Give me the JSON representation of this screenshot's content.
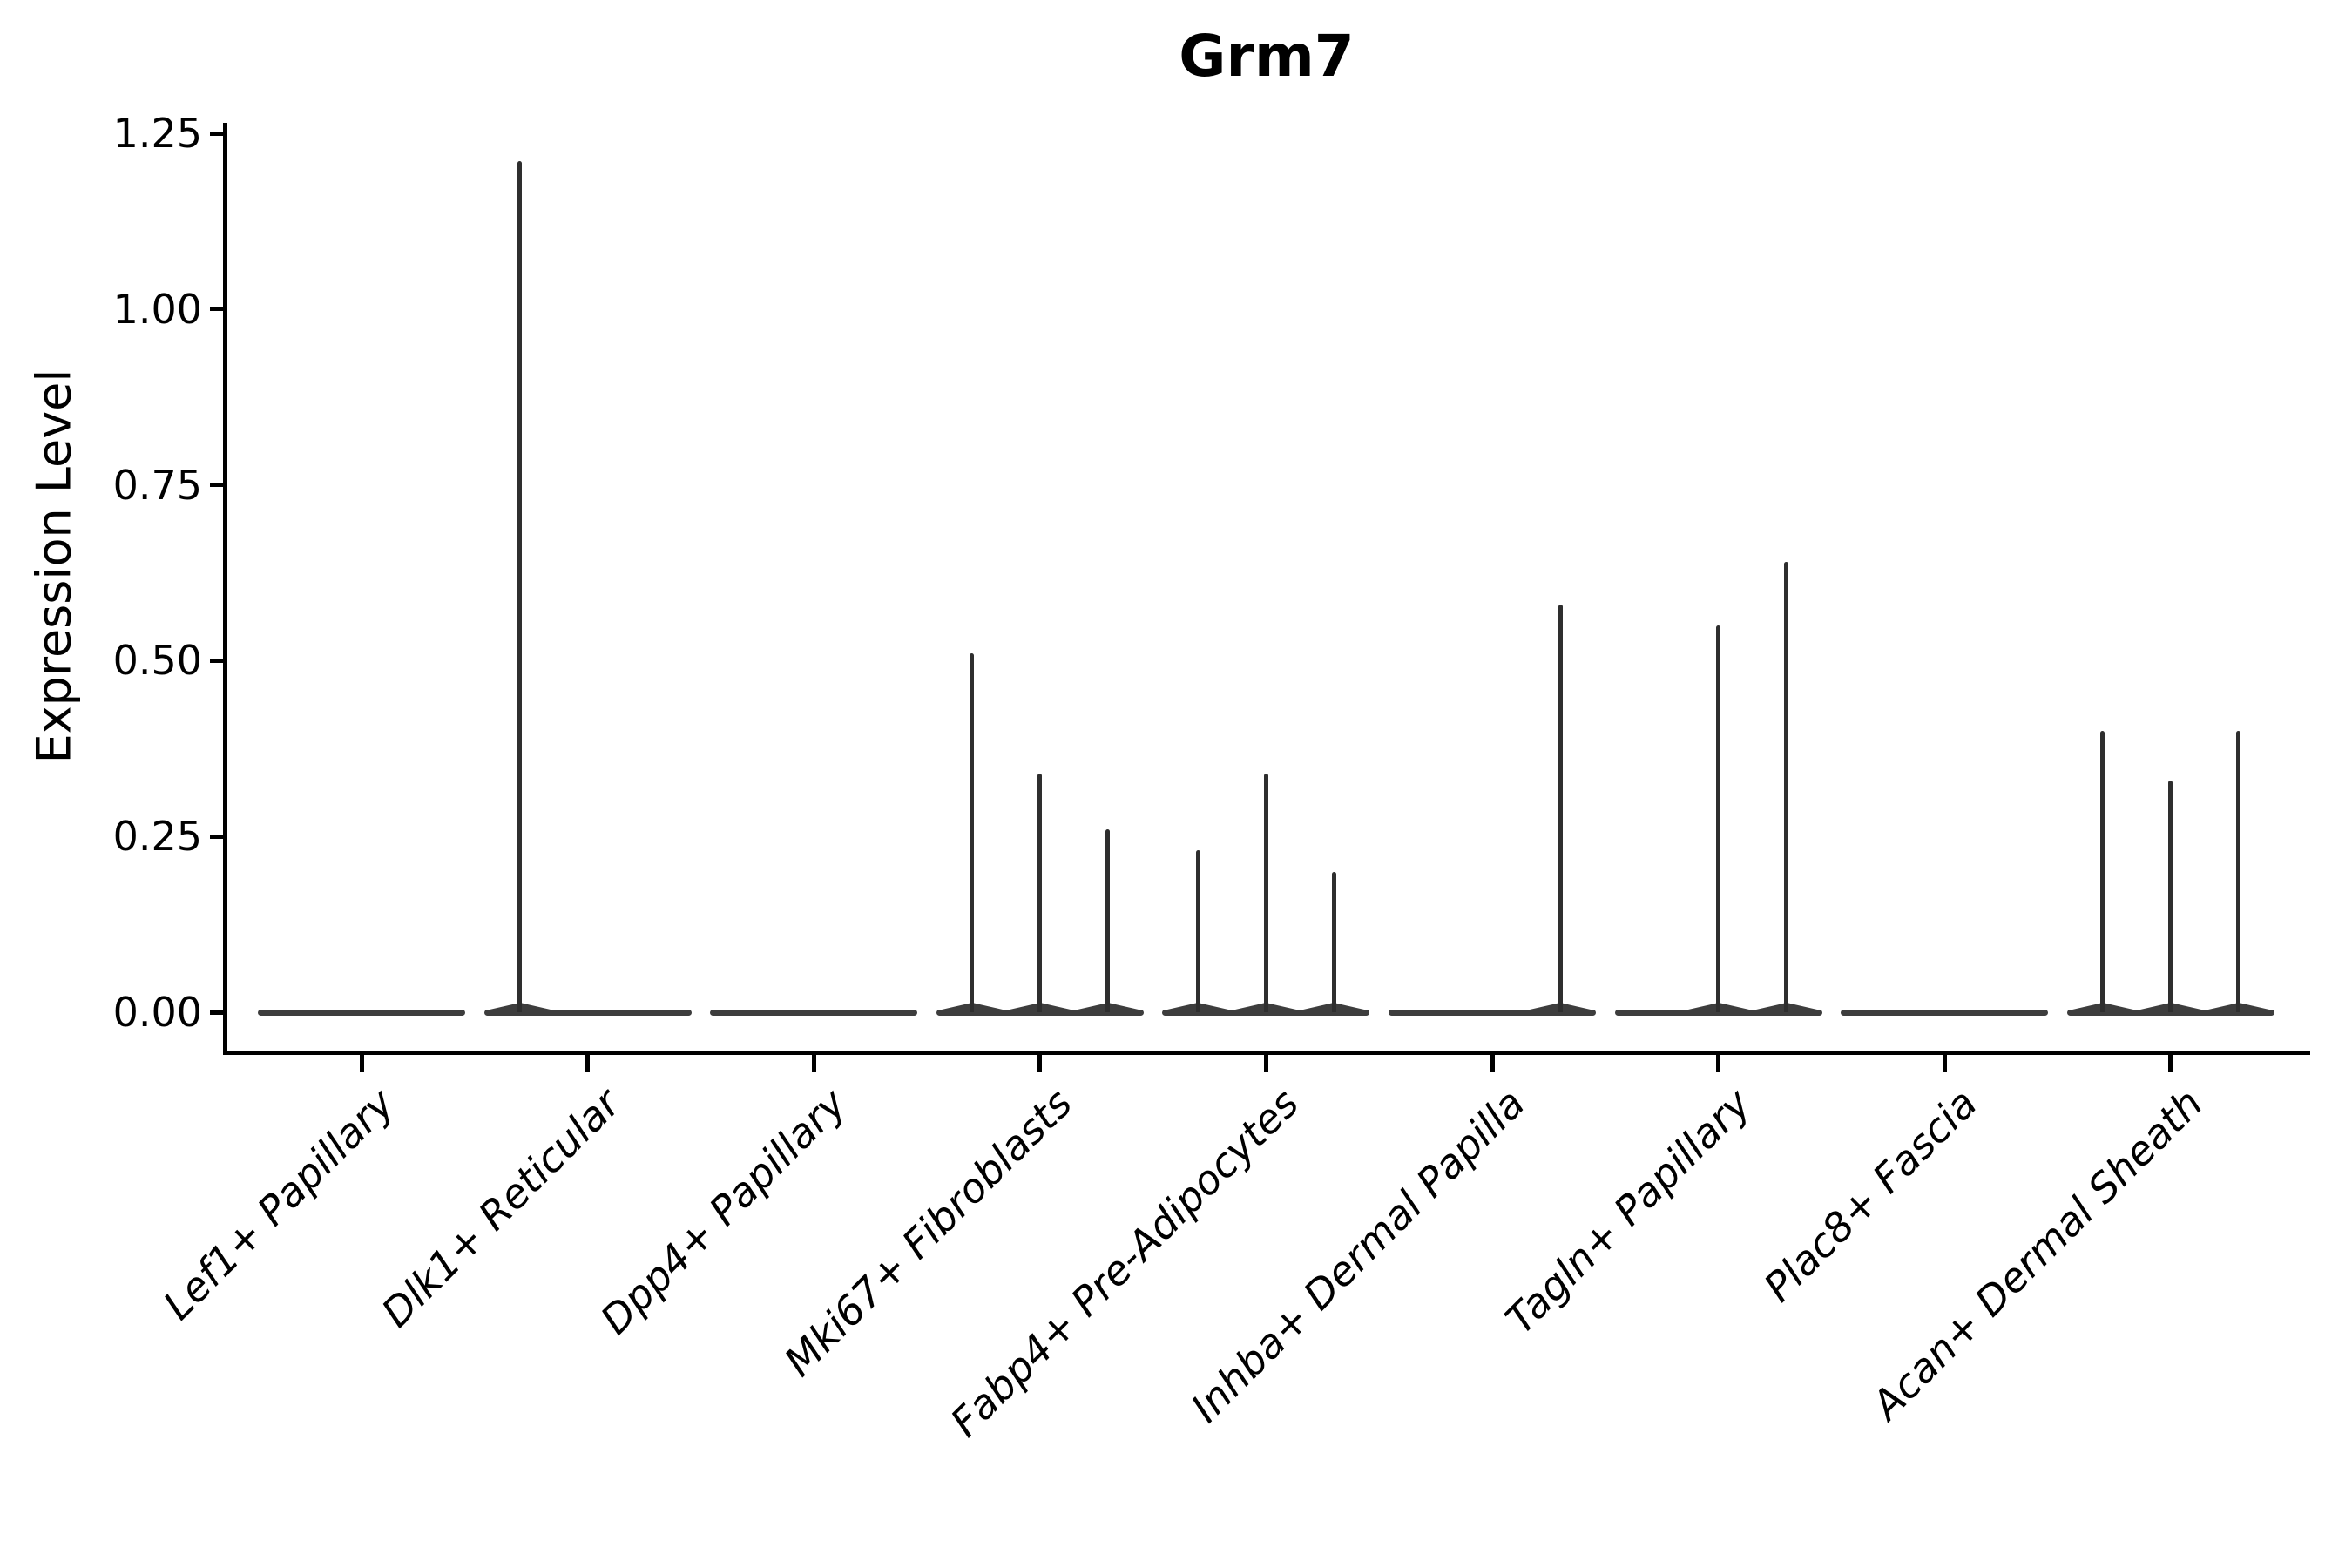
{
  "title": "Grm7",
  "chart_data": {
    "type": "violin",
    "title": "Grm7",
    "xlabel": "",
    "ylabel": "Expression Level",
    "yticks": [
      "0.00",
      "0.25",
      "0.50",
      "0.75",
      "1.00",
      "1.25"
    ],
    "ytick_values": [
      0,
      0.25,
      0.5,
      0.75,
      1.0,
      1.25
    ],
    "ylim": [
      -0.06,
      1.26
    ],
    "grid": false,
    "legend": false,
    "categories": [
      "Lef1+ Papillary",
      "Dlk1+ Reticular",
      "Dpp4+ Papillary",
      "Mki67+ Fibroblasts",
      "Fabp4+ Pre-Adipocytes",
      "Inhba+ Dermal Papilla",
      "Tagln+ Papillary",
      "Plac8+ Fascia",
      "Acan+ Dermal Sheath"
    ],
    "violins_per_category": 3,
    "description": "Collapsed violins flat at 0 with thin density spikes; slot -1 = left sub-violin, 0 = middle, 1 = right sub-violin of each category group",
    "spikes": [
      {
        "category": "Lef1+ Papillary",
        "points": []
      },
      {
        "category": "Dlk1+ Reticular",
        "points": [
          {
            "slot": -1,
            "value": 1.21
          }
        ]
      },
      {
        "category": "Dpp4+ Papillary",
        "points": []
      },
      {
        "category": "Mki67+ Fibroblasts",
        "points": [
          {
            "slot": -1,
            "value": 0.51
          },
          {
            "slot": 0,
            "value": 0.34
          },
          {
            "slot": 1,
            "value": 0.26
          }
        ]
      },
      {
        "category": "Fabp4+ Pre-Adipocytes",
        "points": [
          {
            "slot": -1,
            "value": 0.23
          },
          {
            "slot": 0,
            "value": 0.34
          },
          {
            "slot": 1,
            "value": 0.2
          }
        ]
      },
      {
        "category": "Inhba+ Dermal Papilla",
        "points": [
          {
            "slot": 1,
            "value": 0.58
          }
        ]
      },
      {
        "category": "Tagln+ Papillary",
        "points": [
          {
            "slot": 0,
            "value": 0.55
          },
          {
            "slot": 1,
            "value": 0.64
          }
        ]
      },
      {
        "category": "Plac8+ Fascia",
        "points": []
      },
      {
        "category": "Acan+ Dermal Sheath",
        "points": [
          {
            "slot": -1,
            "value": 0.4
          },
          {
            "slot": 0,
            "value": 0.33
          },
          {
            "slot": 1,
            "value": 0.4
          }
        ]
      }
    ],
    "colors": {
      "spike": "#2e2e2e",
      "violin_base": "#3d3d3d",
      "spine": "#000000",
      "text": "#000000",
      "background": "#ffffff"
    }
  }
}
